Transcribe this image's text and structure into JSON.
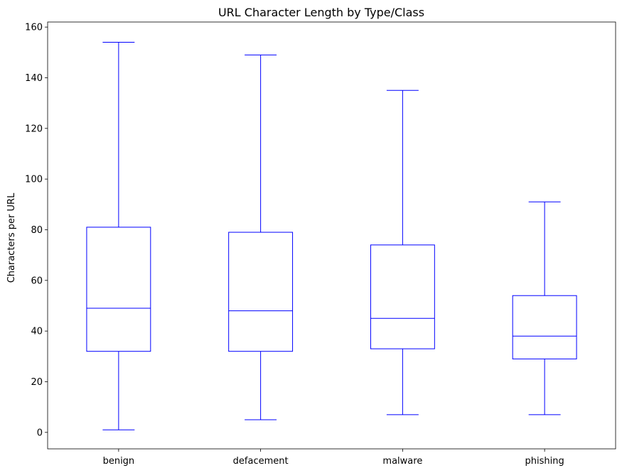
{
  "chart_data": {
    "type": "boxplot",
    "title": "URL Character Length by Type/Class",
    "xlabel": "",
    "ylabel": "Characters per URL",
    "ylim": [
      -6.5,
      162
    ],
    "yticks": [
      0,
      20,
      40,
      60,
      80,
      100,
      120,
      140,
      160
    ],
    "grid": false,
    "color": "#0000ff",
    "categories": [
      "benign",
      "defacement",
      "malware",
      "phishing"
    ],
    "boxes": [
      {
        "name": "benign",
        "whisker_low": 1,
        "q1": 32,
        "median": 49,
        "q3": 81,
        "whisker_high": 154
      },
      {
        "name": "defacement",
        "whisker_low": 5,
        "q1": 32,
        "median": 48,
        "q3": 79,
        "whisker_high": 149
      },
      {
        "name": "malware",
        "whisker_low": 7,
        "q1": 33,
        "median": 45,
        "q3": 74,
        "whisker_high": 135
      },
      {
        "name": "phishing",
        "whisker_low": 7,
        "q1": 29,
        "median": 38,
        "q3": 54,
        "whisker_high": 91
      }
    ]
  }
}
